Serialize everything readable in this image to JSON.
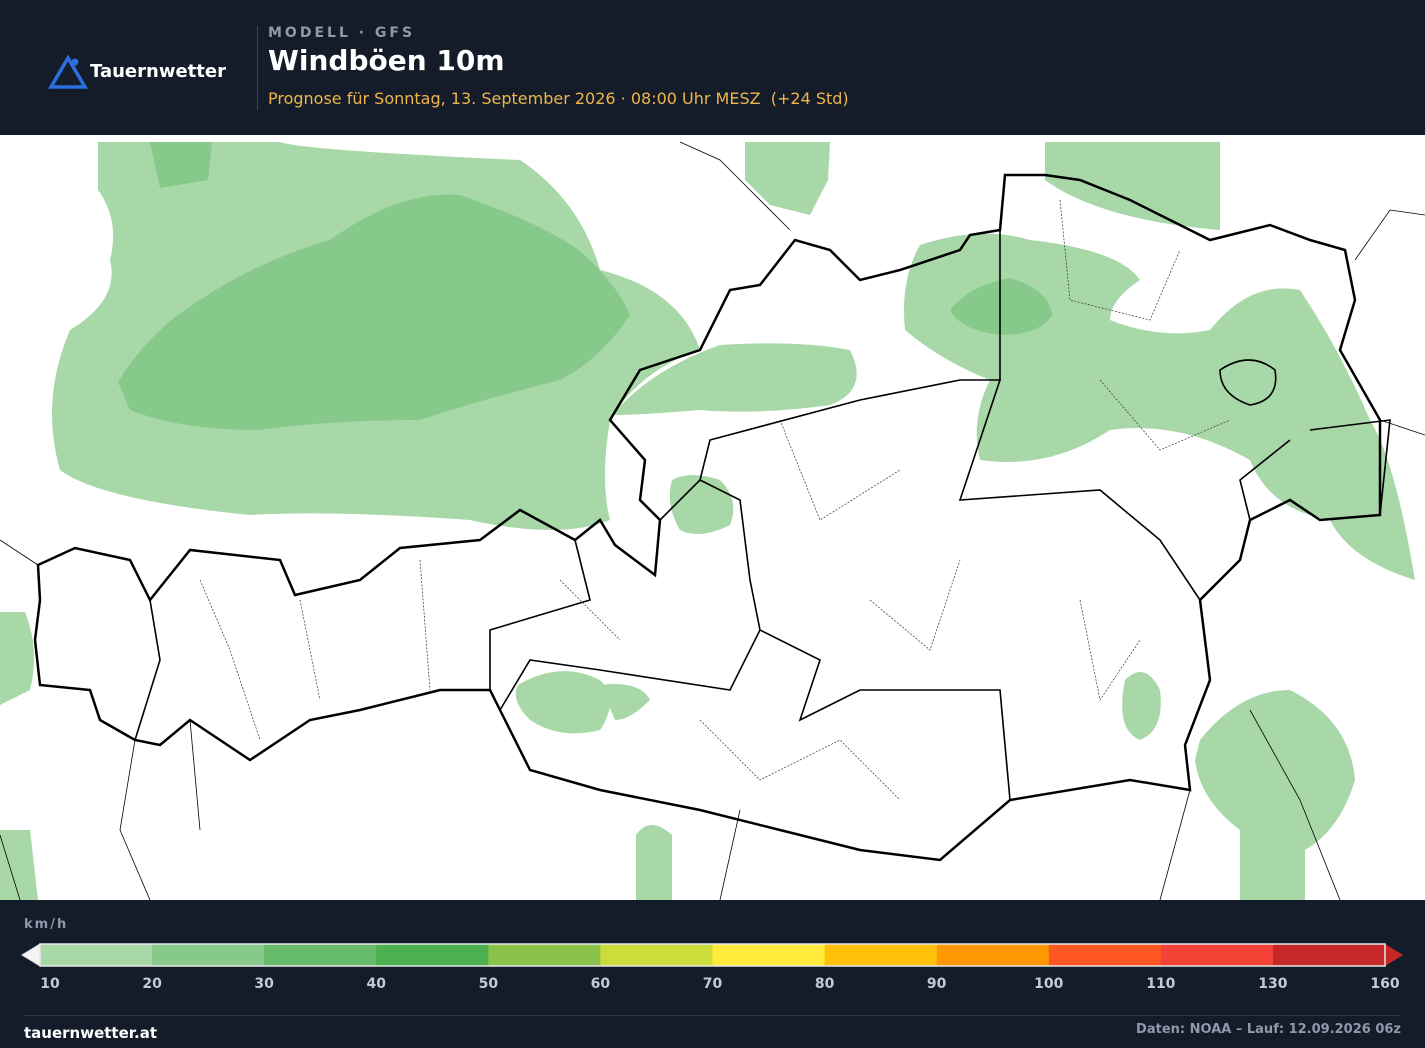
{
  "header": {
    "brand": "Tauernwetter",
    "model": "MODELL · GFS",
    "title": "Windböen 10m",
    "subtitle": "Prognose für Sonntag, 13. September 2026 · 08:00 Uhr MESZ  (+24 Std)"
  },
  "legend": {
    "unit": "km/h",
    "ticks": [
      10,
      20,
      30,
      40,
      50,
      60,
      70,
      80,
      90,
      100,
      110,
      130,
      160
    ],
    "colors": [
      "#a8d8a8",
      "#86c98a",
      "#66bb6a",
      "#4caf50",
      "#8bc34a",
      "#cddc39",
      "#ffeb3b",
      "#ffc107",
      "#ff9800",
      "#ff5722",
      "#f44336",
      "#c62828"
    ]
  },
  "footer": {
    "site": "tauernwetter.at",
    "source": "Daten: NOAA – Lauf: 12.09.2026 06z"
  }
}
